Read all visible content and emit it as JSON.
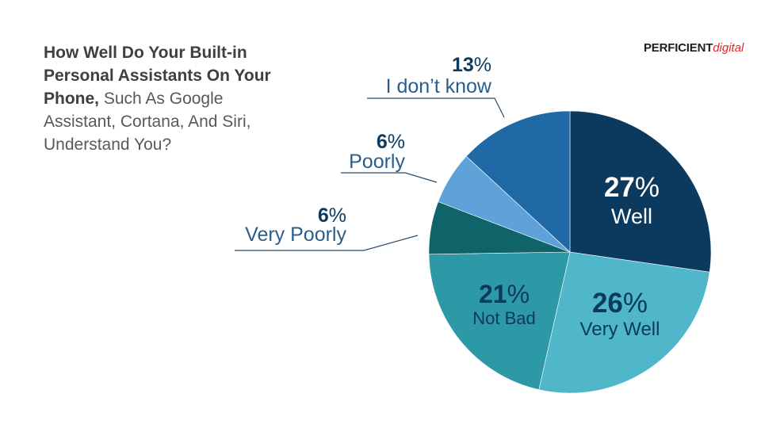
{
  "header": {
    "title_bold": "How Well Do Your Built-in Personal Assistants On Your Phone,",
    "title_rest": " Such As Google Assistant, Cortana, And Siri, Understand You?"
  },
  "logo": {
    "main": "PERFICIENT",
    "sub": "digital",
    "accent_color": "#e0282c"
  },
  "chart_data": {
    "type": "pie",
    "title": "How Well Do Your Built-in Personal Assistants On Your Phone, Such As Google Assistant, Cortana, And Siri, Understand You?",
    "unit": "%",
    "slices": [
      {
        "label": "Well",
        "value": 27,
        "color": "#0c3a5e"
      },
      {
        "label": "Very Well",
        "value": 26,
        "color": "#4fb7c9"
      },
      {
        "label": "Not Bad",
        "value": 21,
        "color": "#2d99a7"
      },
      {
        "label": "Very Poorly",
        "value": 6,
        "color": "#0f6469"
      },
      {
        "label": "Poorly",
        "value": 6,
        "color": "#5ea2d9"
      },
      {
        "label": "I don’t know",
        "value": 13,
        "color": "#1f6aa6"
      }
    ]
  }
}
